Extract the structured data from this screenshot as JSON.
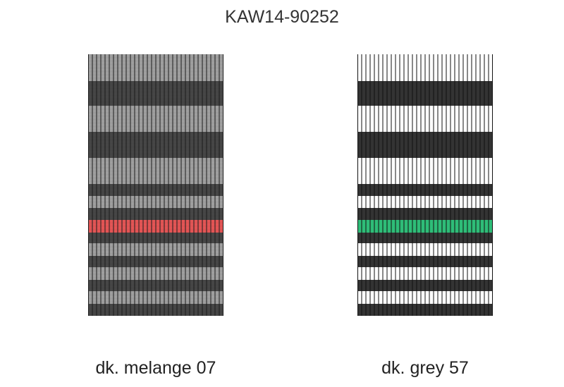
{
  "title": "KAW14-90252",
  "swatches": [
    {
      "caption": "dk. melange 07",
      "base_color": "#8a8a8a",
      "dark_color": "#4a4a4a",
      "light_color": "#a8a8a8",
      "highlight_color": "#ef5a5a",
      "line_color": "#1c1c1c"
    },
    {
      "caption": "dk. grey 57",
      "base_color": "#ffffff",
      "dark_color": "#333333",
      "light_color": "#ffffff",
      "highlight_color": "#2ebd78",
      "line_color": "#111111"
    }
  ]
}
